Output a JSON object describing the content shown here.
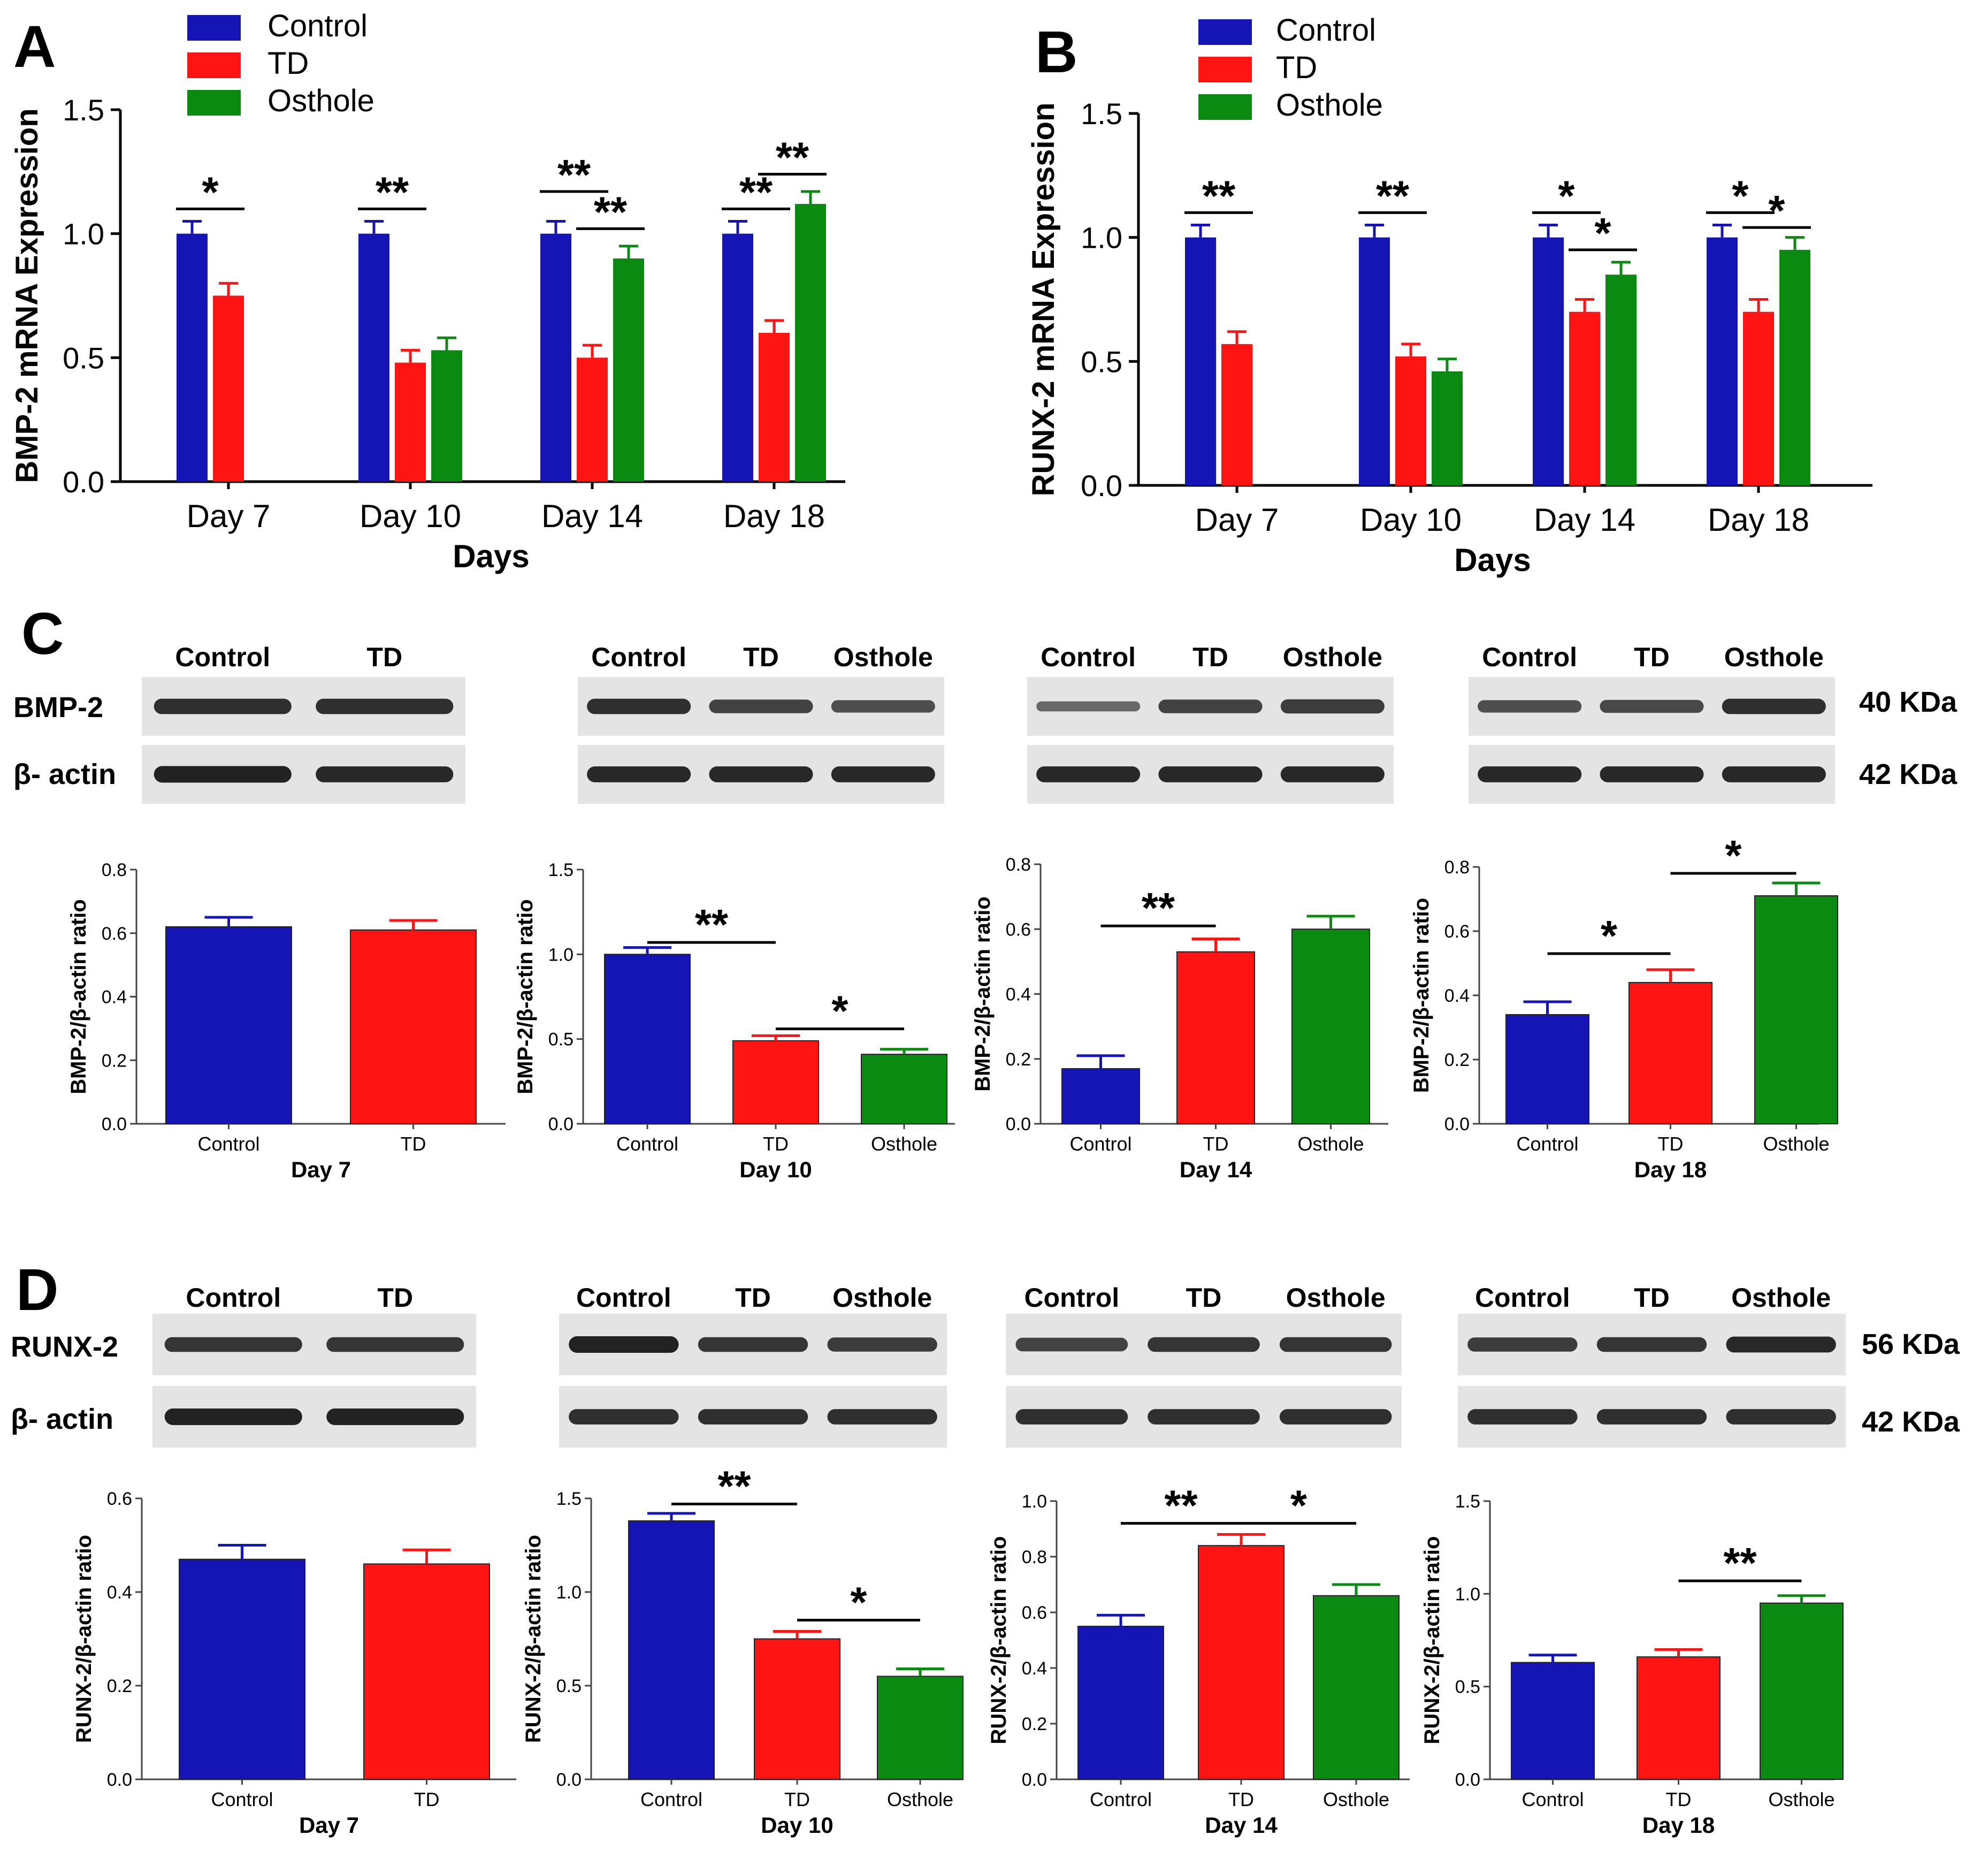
{
  "colors": {
    "control": "#1515b5",
    "td": "#ff1414",
    "osthole": "#0b8a12"
  },
  "panels": {
    "A": "A",
    "B": "B",
    "C": "C",
    "D": "D"
  },
  "axis_common": {
    "xlabel_days": "Days"
  },
  "legend": {
    "control": "Control",
    "td": "TD",
    "osthole": "Osthole"
  },
  "chart_data": [
    {
      "id": "A",
      "type": "bar",
      "ylabel": "BMP-2 mRNA Expression",
      "xlabel": "Days",
      "categories": [
        "Day 7",
        "Day 10",
        "Day 14",
        "Day 18"
      ],
      "ylim": [
        0,
        1.5
      ],
      "yticks": [
        "0.0",
        "0.5",
        "1.0",
        "1.5"
      ],
      "series": [
        {
          "name": "Control",
          "values": [
            1.0,
            1.0,
            1.0,
            1.0
          ],
          "err": [
            0.05,
            0.05,
            0.05,
            0.05
          ]
        },
        {
          "name": "TD",
          "values": [
            0.75,
            0.48,
            0.5,
            0.6
          ],
          "err": [
            0.05,
            0.05,
            0.05,
            0.05
          ]
        },
        {
          "name": "Osthole",
          "values": [
            null,
            0.53,
            0.9,
            1.12
          ],
          "err": [
            null,
            0.05,
            0.05,
            0.05
          ]
        }
      ],
      "significance": [
        {
          "group": 0,
          "from": 0,
          "to": 1,
          "y": 1.1,
          "label": "*"
        },
        {
          "group": 1,
          "from": 0,
          "to": 1,
          "y": 1.1,
          "label": "**"
        },
        {
          "group": 2,
          "from": 0,
          "to": 1,
          "y": 1.17,
          "label": "**"
        },
        {
          "group": 2,
          "from": 1,
          "to": 2,
          "y": 1.02,
          "label": "**"
        },
        {
          "group": 3,
          "from": 0,
          "to": 1,
          "y": 1.1,
          "label": "**"
        },
        {
          "group": 3,
          "from": 1,
          "to": 2,
          "y": 1.24,
          "label": "**"
        }
      ]
    },
    {
      "id": "B",
      "type": "bar",
      "ylabel": "RUNX-2 mRNA Expression",
      "xlabel": "Days",
      "categories": [
        "Day 7",
        "Day 10",
        "Day 14",
        "Day 18"
      ],
      "ylim": [
        0,
        1.5
      ],
      "yticks": [
        "0.0",
        "0.5",
        "1.0",
        "1.5"
      ],
      "series": [
        {
          "name": "Control",
          "values": [
            1.0,
            1.0,
            1.0,
            1.0
          ],
          "err": [
            0.05,
            0.05,
            0.05,
            0.05
          ]
        },
        {
          "name": "TD",
          "values": [
            0.57,
            0.52,
            0.7,
            0.7
          ],
          "err": [
            0.05,
            0.05,
            0.05,
            0.05
          ]
        },
        {
          "name": "Osthole",
          "values": [
            null,
            0.46,
            0.85,
            0.95
          ],
          "err": [
            null,
            0.05,
            0.05,
            0.05
          ]
        }
      ],
      "significance": [
        {
          "group": 0,
          "from": 0,
          "to": 1,
          "y": 1.1,
          "label": "**"
        },
        {
          "group": 1,
          "from": 0,
          "to": 1,
          "y": 1.1,
          "label": "**"
        },
        {
          "group": 2,
          "from": 0,
          "to": 1,
          "y": 1.1,
          "label": "*"
        },
        {
          "group": 2,
          "from": 1,
          "to": 2,
          "y": 0.95,
          "label": "*"
        },
        {
          "group": 3,
          "from": 0,
          "to": 1,
          "y": 1.1,
          "label": "*"
        },
        {
          "group": 3,
          "from": 1,
          "to": 2,
          "y": 1.04,
          "label": "*"
        }
      ]
    },
    {
      "id": "C1",
      "type": "bar",
      "ylabel": "BMP-2/β-actin ratio",
      "xlabel": "Day 7",
      "categories": [
        "Control",
        "TD"
      ],
      "values": [
        0.62,
        0.61
      ],
      "err": [
        0.03,
        0.03
      ],
      "ylim": [
        0,
        0.8
      ],
      "yticks": [
        "0.0",
        "0.2",
        "0.4",
        "0.6",
        "0.8"
      ],
      "significance": []
    },
    {
      "id": "C2",
      "type": "bar",
      "ylabel": "BMP-2/β-actin ratio",
      "xlabel": "Day 10",
      "categories": [
        "Control",
        "TD",
        "Osthole"
      ],
      "values": [
        1.0,
        0.49,
        0.41
      ],
      "err": [
        0.04,
        0.03,
        0.03
      ],
      "ylim": [
        0,
        1.5
      ],
      "yticks": [
        "0.0",
        "0.5",
        "1.0",
        "1.5"
      ],
      "significance": [
        {
          "from": 0,
          "to": 1,
          "y": 1.07,
          "label": "**"
        },
        {
          "from": 1,
          "to": 2,
          "y": 0.56,
          "label": "*"
        }
      ]
    },
    {
      "id": "C3",
      "type": "bar",
      "ylabel": "BMP-2/β-actin ratio",
      "xlabel": "Day 14",
      "categories": [
        "Control",
        "TD",
        "Osthole"
      ],
      "values": [
        0.17,
        0.53,
        0.6
      ],
      "err": [
        0.04,
        0.04,
        0.04
      ],
      "ylim": [
        0,
        0.8
      ],
      "yticks": [
        "0.0",
        "0.2",
        "0.4",
        "0.6",
        "0.8"
      ],
      "significance": [
        {
          "from": 0,
          "to": 1,
          "y": 0.61,
          "label": "**"
        }
      ]
    },
    {
      "id": "C4",
      "type": "bar",
      "ylabel": "BMP-2/β-actin ratio",
      "xlabel": "Day 18",
      "categories": [
        "Control",
        "TD",
        "Osthole"
      ],
      "values": [
        0.34,
        0.44,
        0.71
      ],
      "err": [
        0.04,
        0.04,
        0.04
      ],
      "ylim": [
        0,
        0.8
      ],
      "yticks": [
        "0.0",
        "0.2",
        "0.4",
        "0.6",
        "0.8"
      ],
      "significance": [
        {
          "from": 0,
          "to": 1,
          "y": 0.53,
          "label": "*"
        },
        {
          "from": 1,
          "to": 2,
          "y": 0.78,
          "label": "*"
        }
      ]
    },
    {
      "id": "D1",
      "type": "bar",
      "ylabel": "RUNX-2/β-actin ratio",
      "xlabel": "Day 7",
      "categories": [
        "Control",
        "TD"
      ],
      "values": [
        0.47,
        0.46
      ],
      "err": [
        0.03,
        0.03
      ],
      "ylim": [
        0,
        0.6
      ],
      "yticks": [
        "0.0",
        "0.2",
        "0.4",
        "0.6"
      ],
      "significance": []
    },
    {
      "id": "D2",
      "type": "bar",
      "ylabel": "RUNX-2/β-actin ratio",
      "xlabel": "Day 10",
      "categories": [
        "Control",
        "TD",
        "Osthole"
      ],
      "values": [
        1.38,
        0.75,
        0.55
      ],
      "err": [
        0.04,
        0.04,
        0.04
      ],
      "ylim": [
        0,
        1.5
      ],
      "yticks": [
        "0.0",
        "0.5",
        "1.0",
        "1.5"
      ],
      "significance": [
        {
          "from": 0,
          "to": 1,
          "y": 1.47,
          "label": "**"
        },
        {
          "from": 1,
          "to": 2,
          "y": 0.85,
          "label": "*"
        }
      ]
    },
    {
      "id": "D3",
      "type": "bar",
      "ylabel": "RUNX-2/β-actin ratio",
      "xlabel": "Day 14",
      "categories": [
        "Control",
        "TD",
        "Osthole"
      ],
      "values": [
        0.55,
        0.84,
        0.66
      ],
      "err": [
        0.04,
        0.04,
        0.04
      ],
      "ylim": [
        0,
        1.0
      ],
      "yticks": [
        "0.0",
        "0.2",
        "0.4",
        "0.6",
        "0.8",
        "1.0"
      ],
      "significance": [
        {
          "from": 0,
          "to": 1,
          "y": 0.92,
          "label": "**"
        },
        {
          "from": 1,
          "to": 2,
          "y": 0.92,
          "label": "*"
        }
      ]
    },
    {
      "id": "D4",
      "type": "bar",
      "ylabel": "RUNX-2/β-actin ratio",
      "xlabel": "Day 18",
      "categories": [
        "Control",
        "TD",
        "Osthole"
      ],
      "values": [
        0.63,
        0.66,
        0.95
      ],
      "err": [
        0.04,
        0.04,
        0.04
      ],
      "ylim": [
        0,
        1.5
      ],
      "yticks": [
        "0.0",
        "0.5",
        "1.0",
        "1.5"
      ],
      "significance": [
        {
          "from": 1,
          "to": 2,
          "y": 1.07,
          "label": "**"
        }
      ]
    }
  ],
  "blots": {
    "C": {
      "row_labels": [
        "BMP-2",
        "β- actin"
      ],
      "kda": [
        "40 KDa",
        "42 KDa"
      ],
      "groups": [
        {
          "lanes": [
            "Control",
            "TD"
          ],
          "intensity": [
            [
              0.85,
              0.85
            ],
            [
              0.95,
              0.9
            ]
          ]
        },
        {
          "lanes": [
            "Control",
            "TD",
            "Osthole"
          ],
          "intensity": [
            [
              0.85,
              0.7,
              0.6
            ],
            [
              0.9,
              0.9,
              0.9
            ]
          ]
        },
        {
          "lanes": [
            "Control",
            "TD",
            "Osthole"
          ],
          "intensity": [
            [
              0.4,
              0.7,
              0.75
            ],
            [
              0.9,
              0.9,
              0.9
            ]
          ]
        },
        {
          "lanes": [
            "Control",
            "TD",
            "Osthole"
          ],
          "intensity": [
            [
              0.6,
              0.65,
              0.85
            ],
            [
              0.9,
              0.9,
              0.9
            ]
          ]
        }
      ]
    },
    "D": {
      "row_labels": [
        "RUNX-2",
        "β- actin"
      ],
      "kda": [
        "56 KDa",
        "42 KDa"
      ],
      "groups": [
        {
          "lanes": [
            "Control",
            "TD"
          ],
          "intensity": [
            [
              0.8,
              0.8
            ],
            [
              0.95,
              0.95
            ]
          ]
        },
        {
          "lanes": [
            "Control",
            "TD",
            "Osthole"
          ],
          "intensity": [
            [
              0.95,
              0.8,
              0.75
            ],
            [
              0.85,
              0.85,
              0.85
            ]
          ]
        },
        {
          "lanes": [
            "Control",
            "TD",
            "Osthole"
          ],
          "intensity": [
            [
              0.7,
              0.8,
              0.8
            ],
            [
              0.85,
              0.85,
              0.85
            ]
          ]
        },
        {
          "lanes": [
            "Control",
            "TD",
            "Osthole"
          ],
          "intensity": [
            [
              0.75,
              0.8,
              0.9
            ],
            [
              0.85,
              0.85,
              0.85
            ]
          ]
        }
      ]
    }
  }
}
